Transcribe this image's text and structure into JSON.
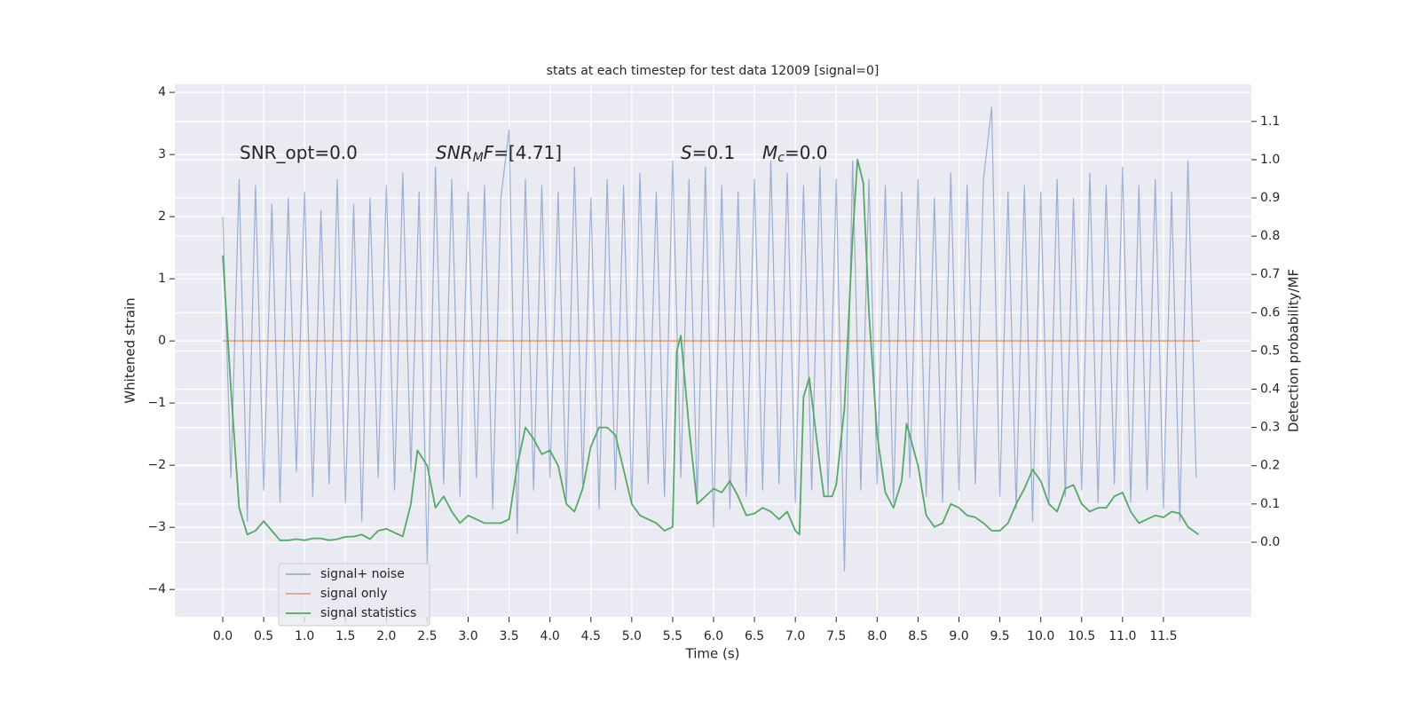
{
  "chart_data": {
    "type": "line",
    "title": "stats at each timestep for test data 12009 [signal=0]",
    "xlabel": "Time (s)",
    "ylabel": "Whitened strain",
    "y2label": "Detection probability/MF",
    "annotations": [
      {
        "parts": [
          {
            "text": "SNR_opt=0.0"
          }
        ]
      },
      {
        "parts": [
          {
            "text": "SNR",
            "style": "italic"
          },
          {
            "text": "M",
            "style": "italic-sub"
          },
          {
            "text": "F",
            "style": "italic"
          },
          {
            "text": "=[4.71]"
          }
        ]
      },
      {
        "parts": [
          {
            "text": "S",
            "style": "italic"
          },
          {
            "text": "=0.1"
          }
        ]
      },
      {
        "parts": [
          {
            "text": "M",
            "style": "italic"
          },
          {
            "text": "c",
            "style": "italic-sub"
          },
          {
            "text": "=0.0"
          }
        ]
      }
    ],
    "xlim": [
      -0.586,
      12.575
    ],
    "xticks": [
      {
        "value": 0,
        "label": "0.0"
      },
      0.5,
      {
        "value": 1,
        "label": "1.0"
      },
      1.5,
      {
        "value": 2,
        "label": "2.0"
      },
      2.5,
      {
        "value": 3,
        "label": "3.0"
      },
      3.5,
      {
        "value": 4,
        "label": "4.0"
      },
      4.5,
      {
        "value": 5,
        "label": "5.0"
      },
      5.5,
      {
        "value": 6,
        "label": "6.0"
      },
      6.5,
      {
        "value": 7,
        "label": "7.0"
      },
      7.5,
      {
        "value": 8,
        "label": "8.0"
      },
      8.5,
      {
        "value": 9,
        "label": "9.0"
      },
      9.5,
      {
        "value": 10,
        "label": "10.0"
      },
      10.5,
      {
        "value": 11,
        "label": "11.0"
      },
      11.5
    ],
    "ylim": [
      -4.44,
      4.13
    ],
    "yticks": [
      {
        "value": -4,
        "label": "−4"
      },
      {
        "value": -3,
        "label": "−3"
      },
      {
        "value": -2,
        "label": "−2"
      },
      {
        "value": -1,
        "label": "−1"
      },
      0,
      1,
      2,
      3,
      4
    ],
    "y2lim": [
      -0.195,
      1.197
    ],
    "y2ticks": [
      {
        "value": 0,
        "label": "0.0"
      },
      0.1,
      0.2,
      0.3,
      0.4,
      0.5,
      0.6,
      0.7,
      0.8,
      0.9,
      {
        "value": 1,
        "label": "1.0"
      },
      1.1
    ],
    "grid": true,
    "legend": "lower left",
    "series": [
      {
        "name": "signal+ noise",
        "color": "#4c72b0",
        "opacity": 0.5,
        "x": [
          0,
          0.1,
          0.2,
          0.3,
          0.4,
          0.5,
          0.6,
          0.7,
          0.8,
          0.9,
          1.0,
          1.1,
          1.2,
          1.3,
          1.4,
          1.5,
          1.6,
          1.7,
          1.8,
          1.9,
          2.0,
          2.1,
          2.2,
          2.3,
          2.4,
          2.5,
          2.6,
          2.7,
          2.8,
          2.9,
          3.0,
          3.1,
          3.2,
          3.3,
          3.4,
          3.5,
          3.6,
          3.7,
          3.8,
          3.9,
          4.0,
          4.1,
          4.2,
          4.3,
          4.4,
          4.5,
          4.6,
          4.7,
          4.8,
          4.9,
          5.0,
          5.1,
          5.2,
          5.3,
          5.4,
          5.5,
          5.6,
          5.7,
          5.8,
          5.9,
          6.0,
          6.1,
          6.2,
          6.3,
          6.4,
          6.5,
          6.6,
          6.7,
          6.8,
          6.9,
          7.0,
          7.1,
          7.2,
          7.3,
          7.4,
          7.5,
          7.6,
          7.7,
          7.8,
          7.9,
          8.0,
          8.1,
          8.2,
          8.3,
          8.4,
          8.5,
          8.6,
          8.7,
          8.8,
          8.9,
          9.0,
          9.1,
          9.2,
          9.3,
          9.4,
          9.5,
          9.6,
          9.7,
          9.8,
          9.9,
          10.0,
          10.1,
          10.2,
          10.3,
          10.4,
          10.5,
          10.6,
          10.7,
          10.8,
          10.9,
          11.0,
          11.1,
          11.2,
          11.3,
          11.4,
          11.5,
          11.6,
          11.7,
          11.8,
          11.9
        ],
        "values": [
          2.0,
          -2.2,
          2.6,
          -2.9,
          2.5,
          -2.4,
          2.2,
          -2.6,
          2.3,
          -2.1,
          2.4,
          -2.5,
          2.1,
          -2.3,
          2.6,
          -2.6,
          2.2,
          -2.9,
          2.3,
          -2.2,
          2.5,
          -2.4,
          2.7,
          -2.1,
          2.4,
          -3.6,
          2.8,
          -2.3,
          2.6,
          -2.5,
          2.4,
          -2.2,
          2.5,
          -2.7,
          2.3,
          3.4,
          -3.1,
          2.6,
          -2.4,
          2.5,
          -2.2,
          2.4,
          -2.6,
          2.8,
          -2.3,
          2.3,
          -2.7,
          2.6,
          -2.4,
          2.5,
          -2.6,
          2.7,
          -2.3,
          2.4,
          -2.5,
          2.9,
          -2.2,
          2.6,
          -2.6,
          2.8,
          -3.0,
          2.5,
          -2.7,
          2.4,
          -2.5,
          2.6,
          -2.4,
          2.9,
          -2.3,
          2.7,
          -2.6,
          2.5,
          -2.4,
          2.8,
          -2.5,
          2.6,
          -3.7,
          2.9,
          -2.4,
          2.6,
          -2.3,
          2.5,
          -2.6,
          2.4,
          -2.2,
          2.6,
          -2.5,
          2.3,
          -2.6,
          2.7,
          -2.4,
          2.5,
          -2.3,
          2.6,
          3.76,
          -2.5,
          2.4,
          -2.7,
          2.5,
          -2.9,
          2.4,
          -2.6,
          2.6,
          -2.5,
          2.3,
          -2.4,
          2.7,
          -2.6,
          2.5,
          -2.3,
          2.8,
          -2.6,
          2.5,
          -2.4,
          2.6,
          -2.7,
          2.4,
          -2.9,
          2.9,
          -2.2
        ]
      },
      {
        "name": "signal only",
        "color": "#dd8452",
        "opacity": 0.7,
        "x": [
          0,
          11.95
        ],
        "values": [
          0,
          0
        ]
      },
      {
        "name": "signal statistics",
        "color": "#55a868",
        "opacity": 1,
        "axis": "y2",
        "x": [
          0,
          0.1,
          0.2,
          0.3,
          0.4,
          0.5,
          0.6,
          0.7,
          0.8,
          0.9,
          1.0,
          1.1,
          1.2,
          1.3,
          1.4,
          1.5,
          1.6,
          1.7,
          1.8,
          1.9,
          2.0,
          2.1,
          2.2,
          2.3,
          2.38,
          2.5,
          2.6,
          2.7,
          2.8,
          2.9,
          3.0,
          3.1,
          3.2,
          3.3,
          3.4,
          3.5,
          3.6,
          3.7,
          3.8,
          3.9,
          4.0,
          4.1,
          4.2,
          4.3,
          4.4,
          4.5,
          4.6,
          4.7,
          4.8,
          4.9,
          5.0,
          5.1,
          5.2,
          5.3,
          5.4,
          5.5,
          5.55,
          5.6,
          5.7,
          5.8,
          5.9,
          6.0,
          6.1,
          6.2,
          6.3,
          6.4,
          6.5,
          6.6,
          6.7,
          6.8,
          6.9,
          7.0,
          7.05,
          7.1,
          7.17,
          7.3,
          7.35,
          7.45,
          7.5,
          7.6,
          7.7,
          7.76,
          7.83,
          7.9,
          8.0,
          8.1,
          8.2,
          8.3,
          8.36,
          8.5,
          8.6,
          8.7,
          8.8,
          8.9,
          9.0,
          9.1,
          9.2,
          9.3,
          9.4,
          9.5,
          9.6,
          9.7,
          9.8,
          9.9,
          10.0,
          10.1,
          10.2,
          10.3,
          10.4,
          10.5,
          10.6,
          10.7,
          10.8,
          10.9,
          11.0,
          11.1,
          11.2,
          11.3,
          11.4,
          11.5,
          11.6,
          11.7,
          11.8,
          11.93
        ],
        "values": [
          0.75,
          0.4,
          0.09,
          0.02,
          0.03,
          0.055,
          0.03,
          0.005,
          0.005,
          0.008,
          0.005,
          0.01,
          0.01,
          0.005,
          0.008,
          0.014,
          0.015,
          0.02,
          0.008,
          0.03,
          0.035,
          0.025,
          0.015,
          0.1,
          0.24,
          0.2,
          0.09,
          0.12,
          0.08,
          0.05,
          0.07,
          0.06,
          0.05,
          0.05,
          0.05,
          0.06,
          0.2,
          0.3,
          0.27,
          0.23,
          0.24,
          0.2,
          0.1,
          0.08,
          0.14,
          0.25,
          0.3,
          0.3,
          0.28,
          0.19,
          0.1,
          0.07,
          0.06,
          0.05,
          0.03,
          0.04,
          0.5,
          0.54,
          0.3,
          0.1,
          0.12,
          0.14,
          0.13,
          0.16,
          0.12,
          0.07,
          0.075,
          0.09,
          0.08,
          0.06,
          0.08,
          0.03,
          0.02,
          0.38,
          0.43,
          0.2,
          0.12,
          0.12,
          0.15,
          0.35,
          0.8,
          1.0,
          0.94,
          0.6,
          0.28,
          0.13,
          0.09,
          0.16,
          0.31,
          0.2,
          0.07,
          0.04,
          0.05,
          0.1,
          0.09,
          0.07,
          0.065,
          0.05,
          0.03,
          0.03,
          0.05,
          0.1,
          0.14,
          0.19,
          0.16,
          0.1,
          0.08,
          0.14,
          0.15,
          0.1,
          0.08,
          0.09,
          0.09,
          0.12,
          0.13,
          0.08,
          0.05,
          0.06,
          0.07,
          0.065,
          0.08,
          0.075,
          0.04,
          0.02
        ]
      }
    ]
  }
}
